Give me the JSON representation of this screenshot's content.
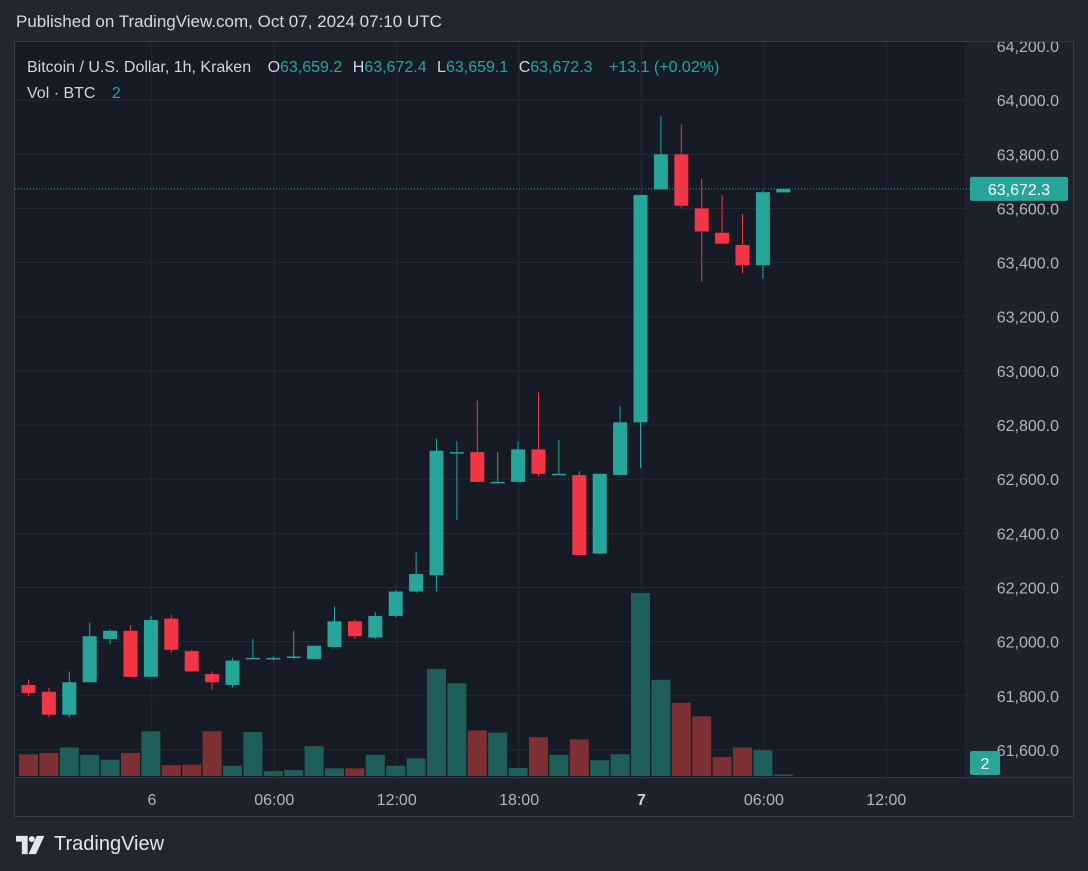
{
  "header": {
    "published": "Published on TradingView.com, Oct 07, 2024 07:10 UTC"
  },
  "legend": {
    "symbol": "Bitcoin / U.S. Dollar, 1h, Kraken",
    "open_label": "O",
    "open": "63,659.2",
    "high_label": "H",
    "high": "63,672.4",
    "low_label": "L",
    "low": "63,659.1",
    "close_label": "C",
    "close": "63,672.3",
    "change": "+13.1 (+0.02%)",
    "volume_label": "Vol · BTC",
    "volume": "2"
  },
  "brand": {
    "name": "TradingView"
  },
  "colors": {
    "up": "#26a69a",
    "down": "#f23645",
    "vol_up": "#1f5f5a",
    "vol_down": "#7d3135",
    "background": "#171b26",
    "grid": "#262a35",
    "text": "#b2b5be"
  },
  "chart_data": {
    "type": "candlestick",
    "price_axis": {
      "min": 61500,
      "max": 64200,
      "ticks": [
        61600,
        61800,
        62000,
        62200,
        62400,
        62600,
        62800,
        63000,
        63200,
        63400,
        63600,
        63800,
        64000,
        64200
      ],
      "tick_labels": [
        "61,600.0",
        "61,800.0",
        "62,000.0",
        "62,200.0",
        "62,400.0",
        "62,600.0",
        "62,800.0",
        "63,000.0",
        "63,200.0",
        "63,400.0",
        "63,600.0",
        "63,800.0",
        "64,000.0",
        "64,200.0"
      ]
    },
    "time_axis": {
      "tick_labels": [
        "6",
        "06:00",
        "12:00",
        "18:00",
        "7",
        "06:00",
        "12:00"
      ],
      "tick_bar_index": [
        6,
        12,
        18,
        24,
        30,
        36,
        42
      ]
    },
    "last_price": {
      "value": 63672.3,
      "label": "63,672.3"
    },
    "last_volume": {
      "value": 2,
      "label": "2"
    },
    "volume_max": 675,
    "candles": [
      {
        "o": 61840,
        "h": 61860,
        "l": 61800,
        "c": 61810,
        "v": 80
      },
      {
        "o": 61815,
        "h": 61830,
        "l": 61720,
        "c": 61730,
        "v": 85
      },
      {
        "o": 61730,
        "h": 61890,
        "l": 61720,
        "c": 61850,
        "v": 105
      },
      {
        "o": 61850,
        "h": 62070,
        "l": 61850,
        "c": 62020,
        "v": 78
      },
      {
        "o": 62010,
        "h": 62045,
        "l": 61990,
        "c": 62040,
        "v": 60
      },
      {
        "o": 62040,
        "h": 62060,
        "l": 61870,
        "c": 61870,
        "v": 85
      },
      {
        "o": 61870,
        "h": 62095,
        "l": 61870,
        "c": 62080,
        "v": 165
      },
      {
        "o": 62085,
        "h": 62100,
        "l": 61960,
        "c": 61970,
        "v": 40
      },
      {
        "o": 61965,
        "h": 61970,
        "l": 61890,
        "c": 61890,
        "v": 42
      },
      {
        "o": 61880,
        "h": 61890,
        "l": 61820,
        "c": 61850,
        "v": 165
      },
      {
        "o": 61840,
        "h": 61940,
        "l": 61830,
        "c": 61930,
        "v": 38
      },
      {
        "o": 61935,
        "h": 62010,
        "l": 61935,
        "c": 61940,
        "v": 162
      },
      {
        "o": 61935,
        "h": 61945,
        "l": 61930,
        "c": 61940,
        "v": 18
      },
      {
        "o": 61940,
        "h": 62040,
        "l": 61935,
        "c": 61945,
        "v": 22
      },
      {
        "o": 61935,
        "h": 61985,
        "l": 61935,
        "c": 61985,
        "v": 110
      },
      {
        "o": 61980,
        "h": 62130,
        "l": 61975,
        "c": 62075,
        "v": 28
      },
      {
        "o": 62075,
        "h": 62080,
        "l": 62010,
        "c": 62020,
        "v": 28
      },
      {
        "o": 62015,
        "h": 62110,
        "l": 62010,
        "c": 62095,
        "v": 78
      },
      {
        "o": 62095,
        "h": 62190,
        "l": 62090,
        "c": 62185,
        "v": 38
      },
      {
        "o": 62185,
        "h": 62330,
        "l": 62180,
        "c": 62250,
        "v": 65
      },
      {
        "o": 62245,
        "h": 62750,
        "l": 62185,
        "c": 62705,
        "v": 395
      },
      {
        "o": 62700,
        "h": 62740,
        "l": 62450,
        "c": 62700,
        "v": 342
      },
      {
        "o": 62700,
        "h": 62890,
        "l": 62590,
        "c": 62590,
        "v": 168
      },
      {
        "o": 62590,
        "h": 62700,
        "l": 62590,
        "c": 62590,
        "v": 160
      },
      {
        "o": 62590,
        "h": 62740,
        "l": 62590,
        "c": 62710,
        "v": 30
      },
      {
        "o": 62710,
        "h": 62920,
        "l": 62610,
        "c": 62620,
        "v": 143
      },
      {
        "o": 62620,
        "h": 62745,
        "l": 62620,
        "c": 62620,
        "v": 78
      },
      {
        "o": 62615,
        "h": 62630,
        "l": 62320,
        "c": 62320,
        "v": 135
      },
      {
        "o": 62325,
        "h": 62610,
        "l": 62325,
        "c": 62620,
        "v": 58
      },
      {
        "o": 62615,
        "h": 62870,
        "l": 62615,
        "c": 62810,
        "v": 80
      },
      {
        "o": 62810,
        "h": 63650,
        "l": 62640,
        "c": 63650,
        "v": 675
      },
      {
        "o": 63670,
        "h": 63940,
        "l": 63670,
        "c": 63800,
        "v": 355
      },
      {
        "o": 63800,
        "h": 63910,
        "l": 63600,
        "c": 63610,
        "v": 270
      },
      {
        "o": 63600,
        "h": 63710,
        "l": 63330,
        "c": 63515,
        "v": 220
      },
      {
        "o": 63510,
        "h": 63650,
        "l": 63470,
        "c": 63470,
        "v": 70
      },
      {
        "o": 63465,
        "h": 63580,
        "l": 63360,
        "c": 63390,
        "v": 105
      },
      {
        "o": 63390,
        "h": 63665,
        "l": 63340,
        "c": 63660,
        "v": 95
      },
      {
        "o": 63659.2,
        "h": 63672.4,
        "l": 63659.1,
        "c": 63672.3,
        "v": 2
      }
    ]
  }
}
